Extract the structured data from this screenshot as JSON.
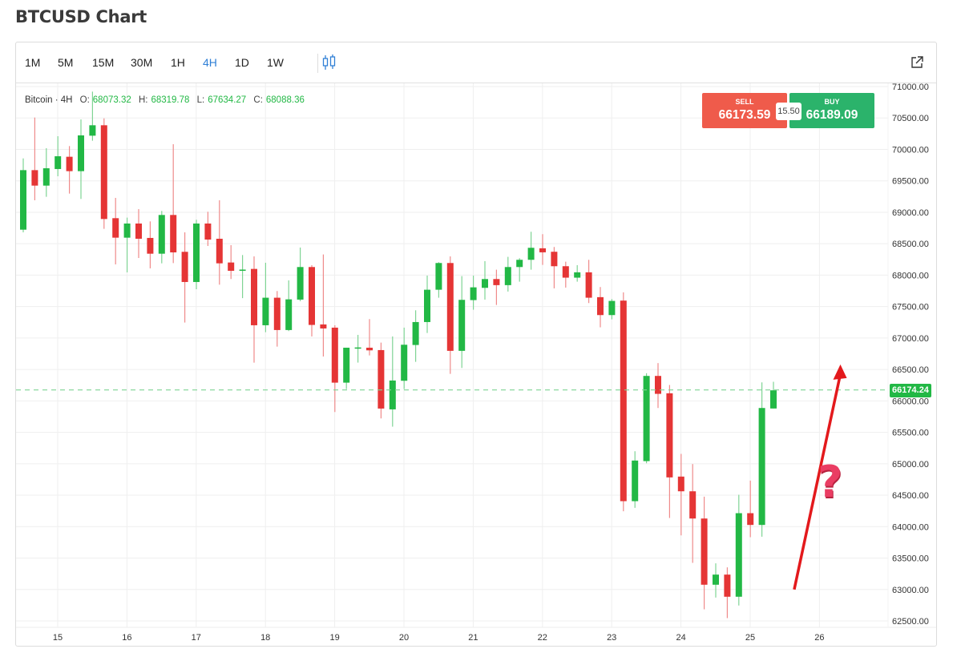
{
  "page": {
    "title": "BTCUSD Chart"
  },
  "toolbar": {
    "timeframes": [
      "1M",
      "5M",
      "15M",
      "30M",
      "1H",
      "4H",
      "1D",
      "1W"
    ],
    "active_timeframe": "4H",
    "chart_type_icon": "candlestick-icon",
    "external_icon": "external-link-icon"
  },
  "legend": {
    "symbol": "Bitcoin · 4H",
    "o_label": "O:",
    "o": "68073.32",
    "h_label": "H:",
    "h": "68319.78",
    "l_label": "L:",
    "l": "67634.27",
    "c_label": "C:",
    "c": "68088.36"
  },
  "trade": {
    "sell_label": "SELL",
    "sell_price": "66173.59",
    "buy_label": "BUY",
    "buy_price": "66189.09",
    "spread": "15.50"
  },
  "current_price": "66174.24",
  "annotation": {
    "question_mark": "?"
  },
  "colors": {
    "up": "#22b845",
    "down": "#e53535",
    "up_wick": "#7fd494",
    "down_wick": "#ef8a8a",
    "accent": "#2f7fd6",
    "sell": "#ef5b4b",
    "buy": "#2bb36b",
    "arrow": "#e3191c"
  },
  "chart_data": {
    "type": "candlestick",
    "title": "BTCUSD 4H",
    "interval": "4H",
    "first_candle": "14 12:00",
    "ylim": [
      62400,
      71050
    ],
    "y_ticks": [
      "71000.00",
      "70500.00",
      "70000.00",
      "69500.00",
      "69000.00",
      "68500.00",
      "68000.00",
      "67500.00",
      "67000.00",
      "66500.00",
      "66000.00",
      "65500.00",
      "65000.00",
      "64500.00",
      "64000.00",
      "63500.00",
      "63000.00",
      "62500.00"
    ],
    "x_ticks": [
      "15",
      "16",
      "17",
      "18",
      "19",
      "20",
      "21",
      "22",
      "23",
      "24",
      "25",
      "26"
    ],
    "grid": true,
    "ohlc": [
      [
        68723,
        69857,
        68681,
        69670
      ],
      [
        69670,
        70507,
        69191,
        69424
      ],
      [
        69424,
        70019,
        69246,
        69700
      ],
      [
        69688,
        70210,
        69573,
        69891
      ],
      [
        69883,
        70053,
        69297,
        69654
      ],
      [
        69654,
        70477,
        69212,
        70223
      ],
      [
        70218,
        70919,
        70138,
        70384
      ],
      [
        70384,
        70494,
        68736,
        68893
      ],
      [
        68906,
        69229,
        68171,
        68596
      ],
      [
        68596,
        68915,
        68044,
        68821
      ],
      [
        68821,
        69050,
        68273,
        68579
      ],
      [
        68592,
        68855,
        68108,
        68341
      ],
      [
        68341,
        69021,
        68188,
        68957
      ],
      [
        68957,
        70082,
        68192,
        68362
      ],
      [
        68371,
        68681,
        67246,
        67891
      ],
      [
        67891,
        68881,
        67776,
        68821
      ],
      [
        68821,
        69008,
        68464,
        68566
      ],
      [
        68579,
        69191,
        67848,
        68188
      ],
      [
        68201,
        68477,
        67938,
        68069
      ],
      [
        68073.32,
        68319.78,
        67634.27,
        68088.36
      ],
      [
        68099,
        68299,
        66608,
        67203
      ],
      [
        67203,
        68197,
        67093,
        67641
      ],
      [
        67641,
        67747,
        66863,
        67127
      ],
      [
        67127,
        67917,
        67110,
        67615
      ],
      [
        67611,
        68439,
        67585,
        68129
      ],
      [
        68129,
        68159,
        67025,
        67208
      ],
      [
        67216,
        68329,
        66706,
        67152
      ],
      [
        67165,
        67203,
        65823,
        66290
      ],
      [
        66290,
        66846,
        66188,
        66846
      ],
      [
        66838,
        67050,
        66609,
        66850
      ],
      [
        66846,
        67301,
        66723,
        66804
      ],
      [
        66808,
        66927,
        65721,
        65878
      ],
      [
        65865,
        67025,
        65590,
        66324
      ],
      [
        66320,
        67165,
        66188,
        66893
      ],
      [
        66889,
        67441,
        66621,
        67254
      ],
      [
        67254,
        67993,
        67080,
        67768
      ],
      [
        67768,
        68206,
        67641,
        68193
      ],
      [
        68193,
        68299,
        66430,
        66796
      ],
      [
        66796,
        67985,
        66524,
        67607
      ],
      [
        67603,
        67993,
        67450,
        67806
      ],
      [
        67798,
        68223,
        67611,
        67938
      ],
      [
        67938,
        68087,
        67526,
        67841
      ],
      [
        67841,
        68291,
        67739,
        68129
      ],
      [
        68129,
        68270,
        67896,
        68244
      ],
      [
        68244,
        68690,
        68087,
        68435
      ],
      [
        68427,
        68652,
        68163,
        68363
      ],
      [
        68372,
        68448,
        67790,
        68142
      ],
      [
        68142,
        68214,
        67802,
        67960
      ],
      [
        67960,
        68159,
        67896,
        68045
      ],
      [
        68045,
        68244,
        67556,
        67641
      ],
      [
        67650,
        67811,
        67170,
        67365
      ],
      [
        67365,
        67620,
        67297,
        67590
      ],
      [
        67595,
        67726,
        64244,
        64405
      ],
      [
        64405,
        65199,
        64299,
        65051
      ],
      [
        65042,
        66440,
        65008,
        66397
      ],
      [
        66397,
        66601,
        65887,
        66112
      ],
      [
        66121,
        66253,
        64138,
        64783
      ],
      [
        64796,
        65157,
        63861,
        64562
      ],
      [
        64562,
        64995,
        63424,
        64129
      ],
      [
        64129,
        64477,
        62685,
        63076
      ],
      [
        63076,
        63416,
        62872,
        63237
      ],
      [
        63237,
        63352,
        62545,
        62885
      ],
      [
        62885,
        64507,
        62745,
        64214
      ],
      [
        64214,
        64732,
        63832,
        64027
      ],
      [
        64027,
        66295,
        63840,
        65887
      ],
      [
        65879,
        66304,
        65879,
        66168
      ]
    ],
    "current_price_line": 66174.24,
    "annotation_arrow": {
      "from": {
        "candle": 66.8,
        "price": 63000
      },
      "to": {
        "candle": 70.8,
        "price": 66580
      }
    }
  }
}
